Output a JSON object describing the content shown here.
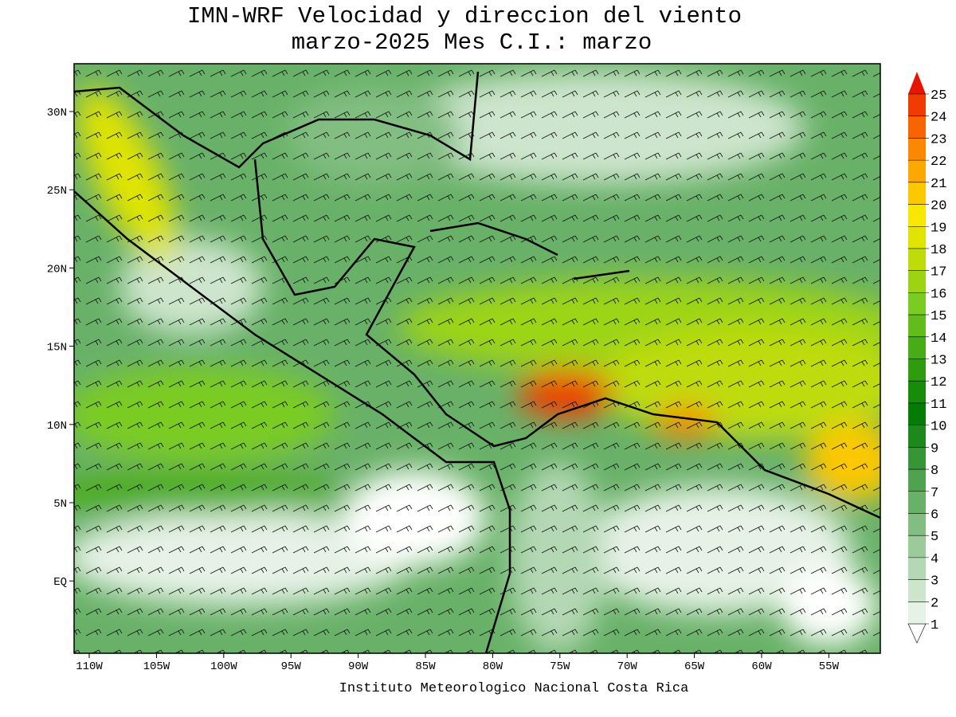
{
  "title": [
    "IMN-WRF Velocidad y direccion del viento",
    "marzo-2025 Mes C.I.: marzo"
  ],
  "map": {
    "lon_labels": [
      "110W",
      "105W",
      "100W",
      "95W",
      "90W",
      "85W",
      "80W",
      "75W",
      "70W",
      "65W",
      "60W",
      "55W"
    ],
    "lat_labels": [
      "30N",
      "25N",
      "20N",
      "15N",
      "10N",
      "5N",
      "EQ"
    ]
  },
  "colorbar": {
    "levels": [
      1,
      2,
      3,
      4,
      5,
      6,
      7,
      8,
      9,
      10,
      11,
      12,
      13,
      14,
      15,
      16,
      17,
      18,
      19,
      20,
      21,
      22,
      23,
      24,
      25
    ],
    "colors": [
      "#ffffff",
      "#e6f2e6",
      "#cde5cd",
      "#b4d8b4",
      "#9bcb9b",
      "#82be82",
      "#69b169",
      "#4fa34f",
      "#369636",
      "#1d891d",
      "#047c04",
      "#168c0a",
      "#2f9c10",
      "#48ac16",
      "#61bc1c",
      "#7acc22",
      "#9cd414",
      "#bedc0a",
      "#e0e400",
      "#f8e800",
      "#fcc800",
      "#fca800",
      "#fc8800",
      "#f86400",
      "#f03c00",
      "#e81400"
    ]
  },
  "footer": "Instituto Meteorologico Nacional Costa Rica"
}
